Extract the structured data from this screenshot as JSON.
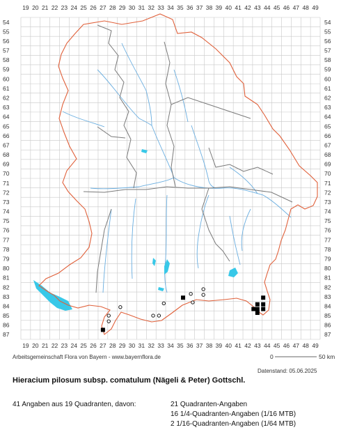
{
  "grid": {
    "x_labels": [
      "19",
      "20",
      "21",
      "22",
      "23",
      "24",
      "25",
      "26",
      "27",
      "28",
      "29",
      "30",
      "31",
      "32",
      "33",
      "34",
      "35",
      "36",
      "37",
      "38",
      "39",
      "40",
      "41",
      "42",
      "43",
      "44",
      "45",
      "46",
      "47",
      "48",
      "49"
    ],
    "y_labels": [
      "54",
      "55",
      "56",
      "57",
      "58",
      "59",
      "60",
      "61",
      "62",
      "63",
      "64",
      "65",
      "66",
      "67",
      "68",
      "69",
      "70",
      "71",
      "72",
      "73",
      "74",
      "75",
      "76",
      "77",
      "78",
      "79",
      "80",
      "81",
      "82",
      "83",
      "84",
      "85",
      "86",
      "87"
    ]
  },
  "scale_bar": {
    "start_label": "0",
    "end_label": "50 km"
  },
  "credit": "Arbeitsgemeinschaft Flora von Bayern - www.bayernflora.de",
  "date_stamp": "Datenstand: 05.06.2025",
  "species": "Hieracium pilosum subsp. comatulum (Nägeli & Peter) Gottschl.",
  "stats": {
    "total": "41 Angaben aus 19 Quadranten, davon:",
    "quadrants": "21 Quadranten-Angaben",
    "quarter": "16 1/4-Quadranten-Angaben (1/16 MTB)",
    "sixteenth": "2 1/16-Quadranten-Angaben (1/64 MTB)"
  },
  "colors": {
    "grid": "#c8c8c8",
    "border": "#e0603a",
    "districts": "#7a7a7a",
    "rivers": "#6aaee0",
    "lakes": "#38c8e8",
    "points": "#000000"
  },
  "occurrences": {
    "filled_squares": [
      {
        "x": 27.0,
        "y": 86.5
      },
      {
        "x": 35.3,
        "y": 83.1
      },
      {
        "x": 43.6,
        "y": 83.1
      },
      {
        "x": 43.0,
        "y": 83.8
      },
      {
        "x": 43.6,
        "y": 83.8
      },
      {
        "x": 42.6,
        "y": 84.3
      },
      {
        "x": 43.0,
        "y": 84.3
      },
      {
        "x": 43.6,
        "y": 84.3
      },
      {
        "x": 43.0,
        "y": 84.7
      }
    ],
    "open_circles": [
      {
        "x": 27.6,
        "y": 85.0
      },
      {
        "x": 27.6,
        "y": 85.6
      },
      {
        "x": 28.8,
        "y": 84.1
      },
      {
        "x": 32.2,
        "y": 85.0
      },
      {
        "x": 32.8,
        "y": 85.0
      },
      {
        "x": 33.3,
        "y": 83.7
      },
      {
        "x": 36.1,
        "y": 82.7
      },
      {
        "x": 36.3,
        "y": 83.6
      },
      {
        "x": 37.4,
        "y": 82.2
      },
      {
        "x": 37.4,
        "y": 82.8
      }
    ]
  }
}
